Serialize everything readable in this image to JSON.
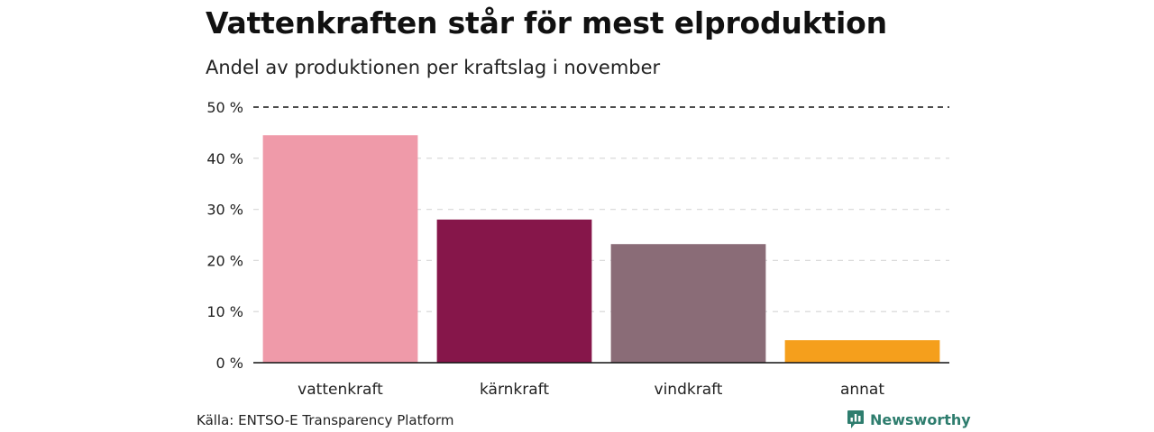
{
  "title": "Vattenkraften står för mest elproduktion",
  "subtitle": "Andel av produktionen per kraftslag i november",
  "source": "Källa: ENTSO-E Transparency Platform",
  "brand": {
    "name": "Newsworthy",
    "icon": "newsworthy-logo-icon",
    "color": "#2e7d6e"
  },
  "chart_data": {
    "type": "bar",
    "categories": [
      "vattenkraft",
      "kärnkraft",
      "vindkraft",
      "annat"
    ],
    "values": [
      44.5,
      28.0,
      23.2,
      4.4
    ],
    "colors": [
      "#ef9aa9",
      "#86164a",
      "#8a6c77",
      "#f59f1c"
    ],
    "ylim": [
      0,
      50
    ],
    "yticks": [
      0,
      10,
      20,
      30,
      40,
      50
    ],
    "ytick_labels": [
      "0 %",
      "10 %",
      "20 %",
      "30 %",
      "40 %",
      "50 %"
    ],
    "grid": true,
    "xlabel": "",
    "ylabel": ""
  }
}
